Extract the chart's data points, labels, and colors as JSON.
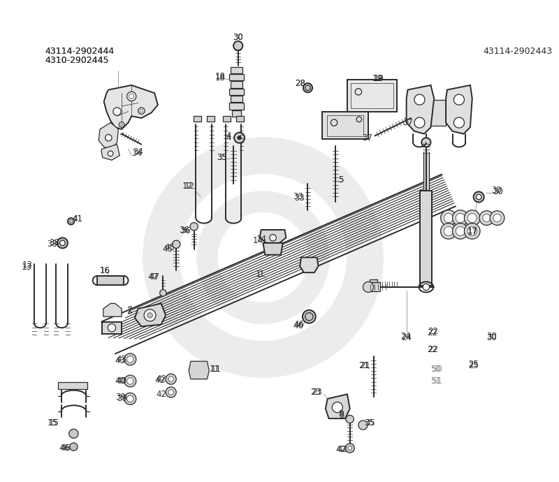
{
  "bg_color": "#ffffff",
  "line_color": "#2a2a2a",
  "label_color": "#2a2a2a",
  "gray_label_color": "#888888",
  "wm_color": "#ececec",
  "top_left_text": [
    "43114-2902444",
    "4310-2902445"
  ],
  "top_right_text": "43114-2902443",
  "figsize": [
    8.0,
    6.9
  ],
  "dpi": 100
}
